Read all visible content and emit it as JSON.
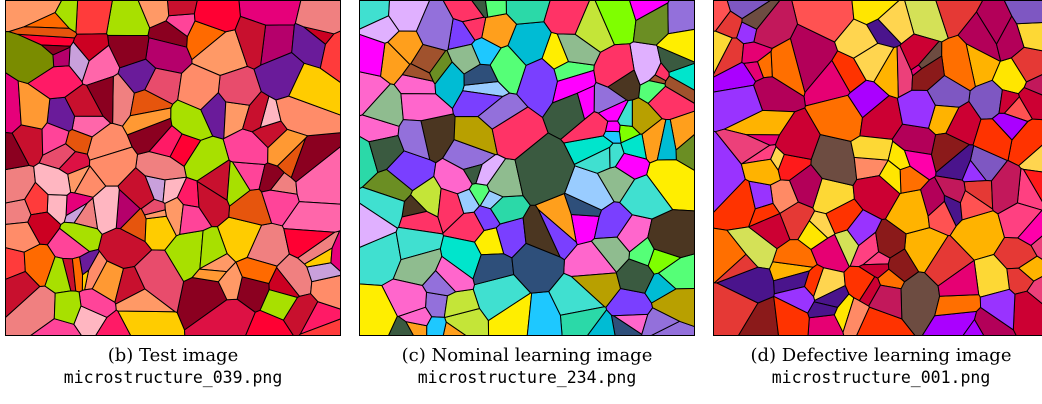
{
  "panels": [
    {
      "label": "(b) Test image",
      "filename": "microstructure_039.png",
      "palette": [
        "#ff0033",
        "#e6007a",
        "#ff3b3b",
        "#cc0022",
        "#ff6a00",
        "#ff9966",
        "#e84c6c",
        "#ff66aa",
        "#c8102e",
        "#ff8c69",
        "#dd1144",
        "#ffcc00",
        "#ff4499",
        "#b5006b",
        "#7a8c00",
        "#c9a0dc",
        "#ff1a66",
        "#ff9933",
        "#a8e000",
        "#8b0020",
        "#ffb6c1",
        "#e6550d",
        "#6a1b9a",
        "#f08080"
      ],
      "colors": {
        "edge": "#000000"
      }
    },
    {
      "label": "(c) Nominal learning image",
      "filename": "microstructure_234.png",
      "palette": [
        "#ffee00",
        "#2bd9a8",
        "#7a3fff",
        "#1ec8ff",
        "#ff3366",
        "#55ff77",
        "#3a5a40",
        "#99ccff",
        "#ff66cc",
        "#b8a000",
        "#00e5cc",
        "#6b8e23",
        "#ff9f1c",
        "#c4e538",
        "#2e4f7a",
        "#e0b0ff",
        "#00bcd4",
        "#8fbc8f",
        "#a0522d",
        "#ff00ff",
        "#4b3621",
        "#7fff00",
        "#9370db",
        "#40e0d0"
      ],
      "colors": {
        "edge": "#000000"
      }
    },
    {
      "label": "(d) Defective learning image",
      "filename": "microstructure_001.png",
      "palette": [
        "#ff00aa",
        "#cc0033",
        "#ff3300",
        "#ffe600",
        "#b30059",
        "#9933ff",
        "#ff6f00",
        "#e60073",
        "#ff1a1a",
        "#c2185b",
        "#d4e157",
        "#ff4081",
        "#8b1a1a",
        "#ffd54f",
        "#7e57c2",
        "#ff8a65",
        "#aa00ff",
        "#e53935",
        "#fdd835",
        "#6d4c41",
        "#ec407a",
        "#ff5252",
        "#4a148c",
        "#ffb300"
      ],
      "colors": {
        "edge": "#000000"
      }
    }
  ]
}
